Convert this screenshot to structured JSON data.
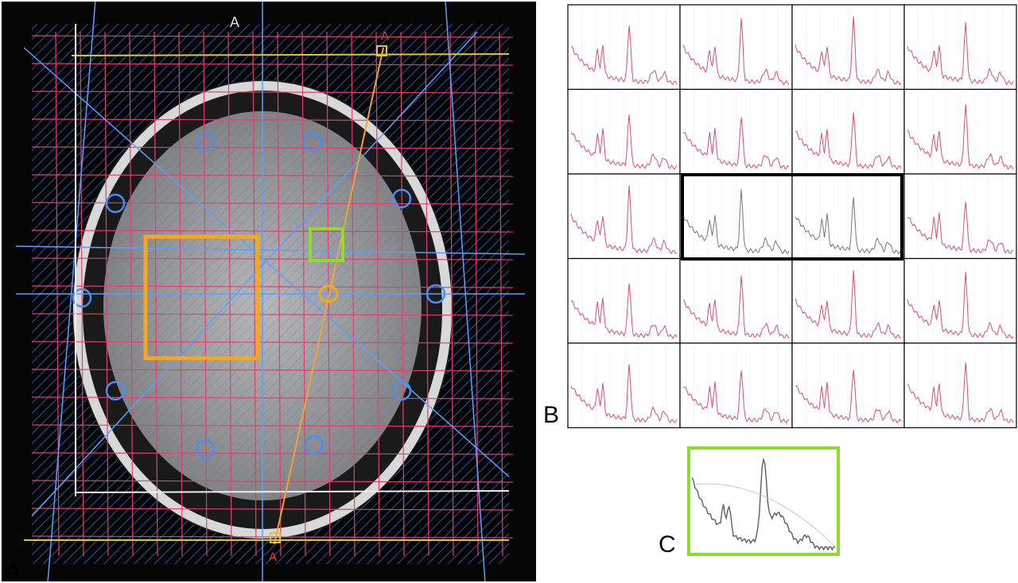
{
  "panels": {
    "a": "A",
    "b": "B",
    "c": "C"
  },
  "image_labels": {
    "top": "A",
    "line_top": "A",
    "line_bottom": "A"
  }
}
